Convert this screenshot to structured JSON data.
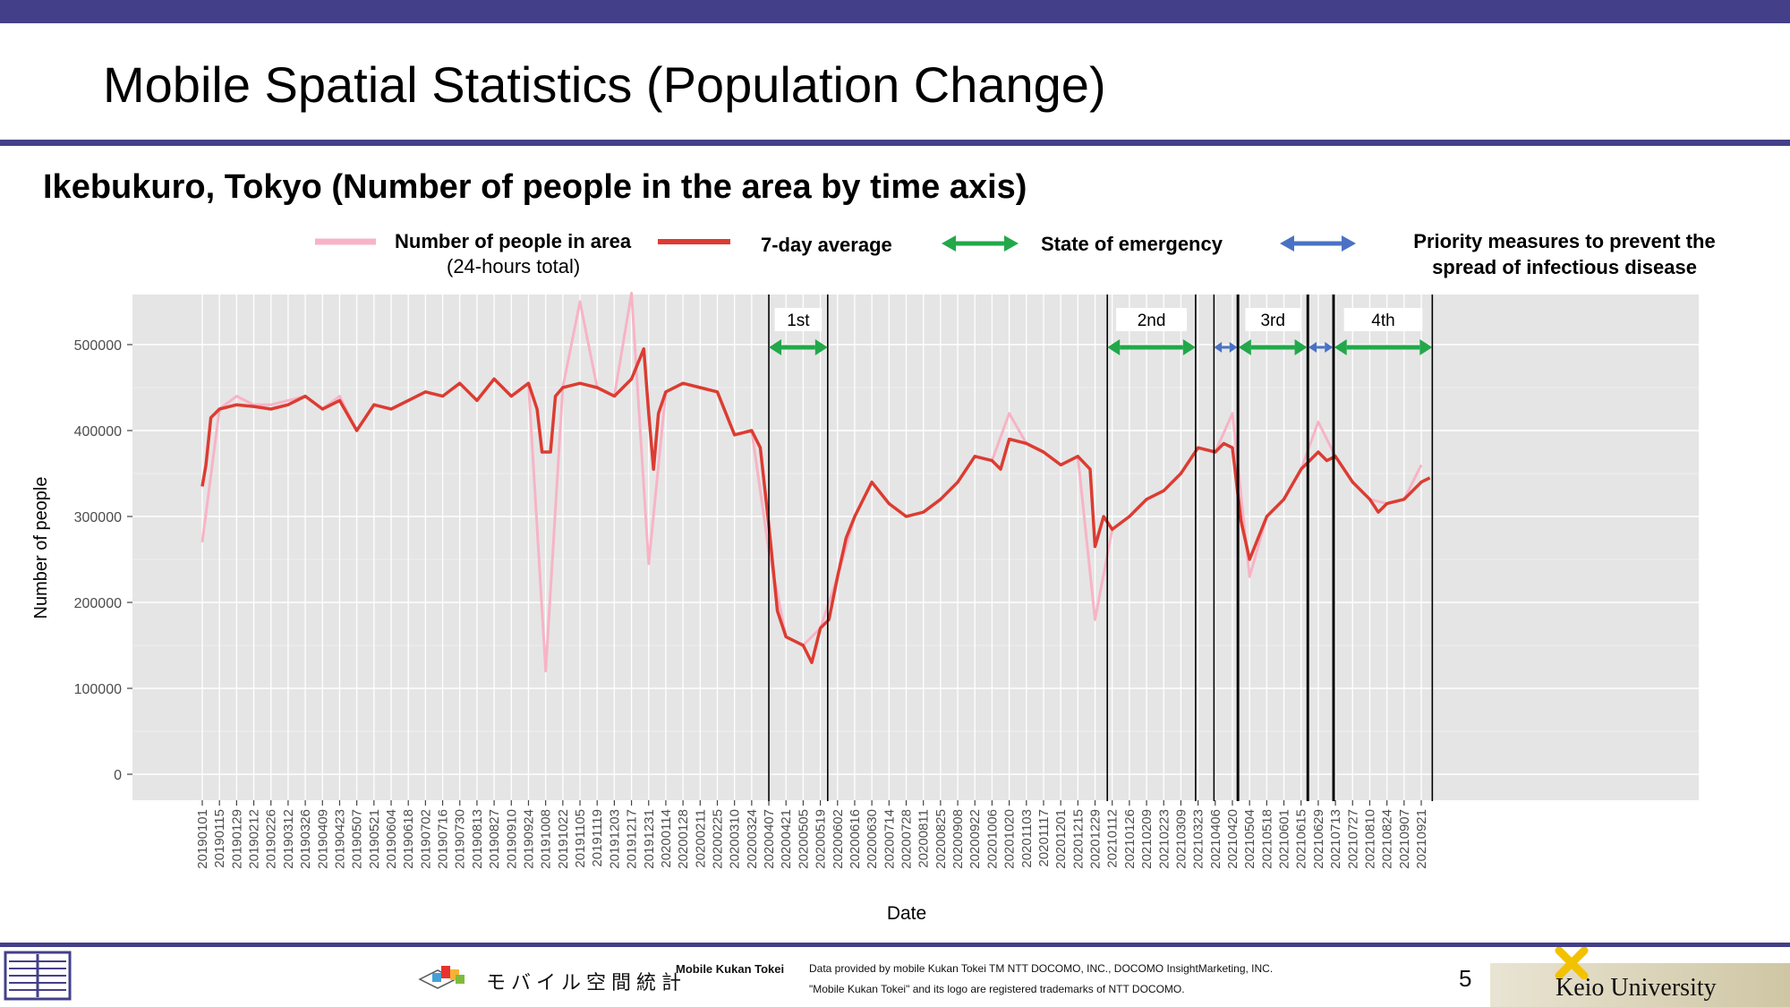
{
  "header": {
    "title": "Mobile Spatial Statistics (Population Change)",
    "subtitle": "Ikebukuro, Tokyo (Number of people in the area by time axis)"
  },
  "legend": {
    "daily_line1": "Number of people in area",
    "daily_line2": "(24-hours total)",
    "average": "7-day average",
    "emergency": "State of emergency",
    "priority_line1": "Priority measures to prevent the",
    "priority_line2": "spread of infectious disease"
  },
  "colors": {
    "daily": "#f7b4c6",
    "average": "#dc3c32",
    "emergency": "#22a84a",
    "priority": "#4a72c4",
    "panel": "#e5e5e5",
    "brand": "#434089"
  },
  "chart_data": {
    "type": "line",
    "xlabel": "Date",
    "ylabel": "Number of people",
    "ylim": [
      0,
      590000
    ],
    "y_ticks": [
      "0",
      "100000",
      "200000",
      "300000",
      "400000",
      "500000"
    ],
    "x_ticks": [
      "20190101",
      "20190115",
      "20190129",
      "20190212",
      "20190226",
      "20190312",
      "20190326",
      "20190409",
      "20190423",
      "20190507",
      "20190521",
      "20190604",
      "20190618",
      "20190702",
      "20190716",
      "20190730",
      "20190813",
      "20190827",
      "20190910",
      "20190924",
      "20191008",
      "20191022",
      "20191105",
      "20191119",
      "20191203",
      "20191217",
      "20191231",
      "20200114",
      "20200128",
      "20200211",
      "20200225",
      "20200310",
      "20200324",
      "20200407",
      "20200421",
      "20200505",
      "20200519",
      "20200602",
      "20200616",
      "20200630",
      "20200714",
      "20200728",
      "20200811",
      "20200825",
      "20200908",
      "20200922",
      "20201006",
      "20201020",
      "20201103",
      "20201117",
      "20201201",
      "20201215",
      "20201229",
      "20210112",
      "20210126",
      "20210209",
      "20210223",
      "20210309",
      "20210323",
      "20210406",
      "20210420",
      "20210504",
      "20210518",
      "20210601",
      "20210615",
      "20210629",
      "20210713",
      "20210727",
      "20210810",
      "20210824",
      "20210907",
      "20210921"
    ],
    "grid": true,
    "legend_position": "top",
    "series": [
      {
        "name": "7-day average",
        "points": [
          [
            "20190101",
            335000
          ],
          [
            "20190104",
            360000
          ],
          [
            "20190108",
            415000
          ],
          [
            "20190115",
            425000
          ],
          [
            "20190129",
            430000
          ],
          [
            "20190212",
            428000
          ],
          [
            "20190226",
            425000
          ],
          [
            "20190312",
            430000
          ],
          [
            "20190326",
            440000
          ],
          [
            "20190409",
            425000
          ],
          [
            "20190423",
            435000
          ],
          [
            "20190507",
            400000
          ],
          [
            "20190521",
            430000
          ],
          [
            "20190604",
            425000
          ],
          [
            "20190618",
            435000
          ],
          [
            "20190702",
            445000
          ],
          [
            "20190716",
            440000
          ],
          [
            "20190730",
            455000
          ],
          [
            "20190813",
            435000
          ],
          [
            "20190827",
            460000
          ],
          [
            "20190910",
            440000
          ],
          [
            "20190924",
            455000
          ],
          [
            "20191001",
            425000
          ],
          [
            "20191005",
            375000
          ],
          [
            "20191012",
            375000
          ],
          [
            "20191016",
            440000
          ],
          [
            "20191022",
            450000
          ],
          [
            "20191105",
            455000
          ],
          [
            "20191119",
            450000
          ],
          [
            "20191203",
            440000
          ],
          [
            "20191217",
            460000
          ],
          [
            "20191227",
            495000
          ],
          [
            "20191231",
            420000
          ],
          [
            "20200104",
            355000
          ],
          [
            "20200108",
            420000
          ],
          [
            "20200114",
            445000
          ],
          [
            "20200128",
            455000
          ],
          [
            "20200211",
            450000
          ],
          [
            "20200225",
            445000
          ],
          [
            "20200310",
            395000
          ],
          [
            "20200324",
            400000
          ],
          [
            "20200331",
            380000
          ],
          [
            "20200407",
            290000
          ],
          [
            "20200414",
            190000
          ],
          [
            "20200421",
            160000
          ],
          [
            "20200505",
            150000
          ],
          [
            "20200512",
            130000
          ],
          [
            "20200519",
            170000
          ],
          [
            "20200526",
            180000
          ],
          [
            "20200602",
            230000
          ],
          [
            "20200609",
            275000
          ],
          [
            "20200616",
            300000
          ],
          [
            "20200630",
            340000
          ],
          [
            "20200714",
            315000
          ],
          [
            "20200728",
            300000
          ],
          [
            "20200811",
            305000
          ],
          [
            "20200825",
            320000
          ],
          [
            "20200908",
            340000
          ],
          [
            "20200922",
            370000
          ],
          [
            "20201006",
            365000
          ],
          [
            "20201013",
            355000
          ],
          [
            "20201020",
            390000
          ],
          [
            "20201103",
            385000
          ],
          [
            "20201117",
            375000
          ],
          [
            "20201201",
            360000
          ],
          [
            "20201215",
            370000
          ],
          [
            "20201225",
            355000
          ],
          [
            "20201229",
            265000
          ],
          [
            "20210105",
            300000
          ],
          [
            "20210112",
            285000
          ],
          [
            "20210126",
            300000
          ],
          [
            "20210209",
            320000
          ],
          [
            "20210223",
            330000
          ],
          [
            "20210309",
            350000
          ],
          [
            "20210323",
            380000
          ],
          [
            "20210406",
            375000
          ],
          [
            "20210413",
            385000
          ],
          [
            "20210420",
            380000
          ],
          [
            "20210427",
            295000
          ],
          [
            "20210504",
            250000
          ],
          [
            "20210518",
            300000
          ],
          [
            "20210601",
            320000
          ],
          [
            "20210615",
            355000
          ],
          [
            "20210629",
            375000
          ],
          [
            "20210706",
            365000
          ],
          [
            "20210713",
            370000
          ],
          [
            "20210727",
            340000
          ],
          [
            "20210810",
            320000
          ],
          [
            "20210817",
            305000
          ],
          [
            "20210824",
            315000
          ],
          [
            "20210907",
            320000
          ],
          [
            "20210921",
            340000
          ],
          [
            "20210928",
            345000
          ]
        ]
      },
      {
        "name": "Number of people in area",
        "points": [
          [
            "20190101",
            270000
          ],
          [
            "20190115",
            425000
          ],
          [
            "20190129",
            440000
          ],
          [
            "20190212",
            430000
          ],
          [
            "20190226",
            430000
          ],
          [
            "20190312",
            435000
          ],
          [
            "20190326",
            440000
          ],
          [
            "20190409",
            425000
          ],
          [
            "20190423",
            440000
          ],
          [
            "20190507",
            400000
          ],
          [
            "20190521",
            430000
          ],
          [
            "20190604",
            425000
          ],
          [
            "20190618",
            435000
          ],
          [
            "20190702",
            445000
          ],
          [
            "20190716",
            440000
          ],
          [
            "20190730",
            455000
          ],
          [
            "20190813",
            435000
          ],
          [
            "20190827",
            460000
          ],
          [
            "20190910",
            440000
          ],
          [
            "20190924",
            455000
          ],
          [
            "20191008",
            120000
          ],
          [
            "20191022",
            450000
          ],
          [
            "20191105",
            550000
          ],
          [
            "20191119",
            450000
          ],
          [
            "20191203",
            440000
          ],
          [
            "20191217",
            560000
          ],
          [
            "20191231",
            245000
          ],
          [
            "20200114",
            445000
          ],
          [
            "20200128",
            455000
          ],
          [
            "20200211",
            450000
          ],
          [
            "20200225",
            445000
          ],
          [
            "20200310",
            395000
          ],
          [
            "20200324",
            400000
          ],
          [
            "20200407",
            260000
          ],
          [
            "20200421",
            160000
          ],
          [
            "20200505",
            150000
          ],
          [
            "20200519",
            170000
          ],
          [
            "20200602",
            230000
          ],
          [
            "20200616",
            300000
          ],
          [
            "20200630",
            340000
          ],
          [
            "20200714",
            315000
          ],
          [
            "20200728",
            300000
          ],
          [
            "20200811",
            305000
          ],
          [
            "20200825",
            320000
          ],
          [
            "20200908",
            340000
          ],
          [
            "20200922",
            370000
          ],
          [
            "20201006",
            365000
          ],
          [
            "20201020",
            420000
          ],
          [
            "20201103",
            385000
          ],
          [
            "20201117",
            375000
          ],
          [
            "20201201",
            360000
          ],
          [
            "20201215",
            370000
          ],
          [
            "20201229",
            180000
          ],
          [
            "20210112",
            285000
          ],
          [
            "20210126",
            300000
          ],
          [
            "20210209",
            320000
          ],
          [
            "20210223",
            330000
          ],
          [
            "20210309",
            350000
          ],
          [
            "20210323",
            380000
          ],
          [
            "20210406",
            375000
          ],
          [
            "20210420",
            420000
          ],
          [
            "20210504",
            230000
          ],
          [
            "20210518",
            300000
          ],
          [
            "20210601",
            320000
          ],
          [
            "20210615",
            355000
          ],
          [
            "20210629",
            410000
          ],
          [
            "20210713",
            370000
          ],
          [
            "20210727",
            340000
          ],
          [
            "20210810",
            320000
          ],
          [
            "20210824",
            315000
          ],
          [
            "20210907",
            320000
          ],
          [
            "20210921",
            360000
          ]
        ]
      }
    ],
    "periods": [
      {
        "label": "1st",
        "type": "emergency",
        "start": "20200407",
        "end": "20200525"
      },
      {
        "label": "2nd",
        "type": "emergency",
        "start": "20210108",
        "end": "20210321"
      },
      {
        "type": "priority",
        "start": "20210405",
        "end": "20210424"
      },
      {
        "label": "3rd",
        "type": "emergency",
        "start": "20210425",
        "end": "20210620"
      },
      {
        "type": "priority",
        "start": "20210621",
        "end": "20210711"
      },
      {
        "label": "4th",
        "type": "emergency",
        "start": "20210712",
        "end": "20210930"
      }
    ]
  },
  "footer": {
    "logo_jp": "モバイル空間統計",
    "brand": "Mobile Kukan Tokei",
    "credit1": "Data provided by mobile Kukan Tokei TM NTT DOCOMO, INC., DOCOMO InsightMarketing, INC.",
    "credit2": "\"Mobile Kukan Tokei\" and its logo are registered trademarks of NTT DOCOMO.",
    "page_number": "5",
    "university": "Keio University"
  }
}
